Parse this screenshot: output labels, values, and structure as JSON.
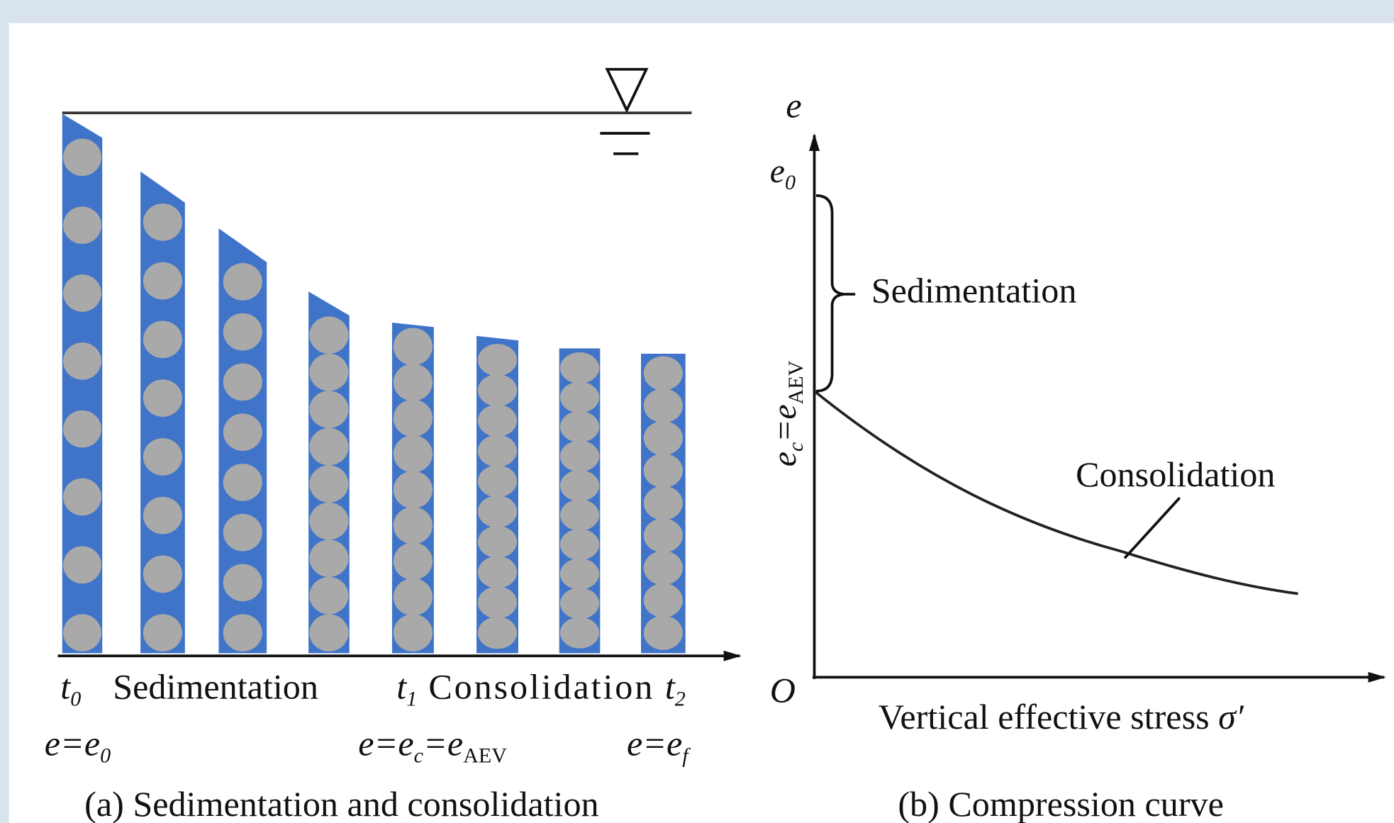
{
  "panel_a": {
    "times": [
      {
        "symbol": "t",
        "subscript": "0"
      },
      {
        "symbol": "t",
        "subscript": "1"
      },
      {
        "symbol": "t",
        "subscript": "2"
      }
    ],
    "phases": [
      "Sedimentation",
      "Consolidation"
    ],
    "states": [
      {
        "parts": [
          "e=e",
          "0"
        ]
      },
      {
        "parts": [
          "e=e",
          "c",
          "=e",
          "AEV"
        ]
      },
      {
        "parts": [
          "e=e",
          "f"
        ]
      }
    ],
    "caption": "(a) Sedimentation and consolidation"
  },
  "panel_b": {
    "y_axis_label": "e",
    "e0_label": {
      "symbol": "e",
      "subscript": "0"
    },
    "ec_label": {
      "parts": [
        "e",
        "c",
        "=e",
        "AEV"
      ]
    },
    "origin": "O",
    "annotations": [
      "Sedimentation",
      "Consolidation"
    ],
    "x_axis_label": {
      "text": "Vertical effective stress ",
      "symbol": "σ′"
    },
    "caption": "(b) Compression curve"
  }
}
